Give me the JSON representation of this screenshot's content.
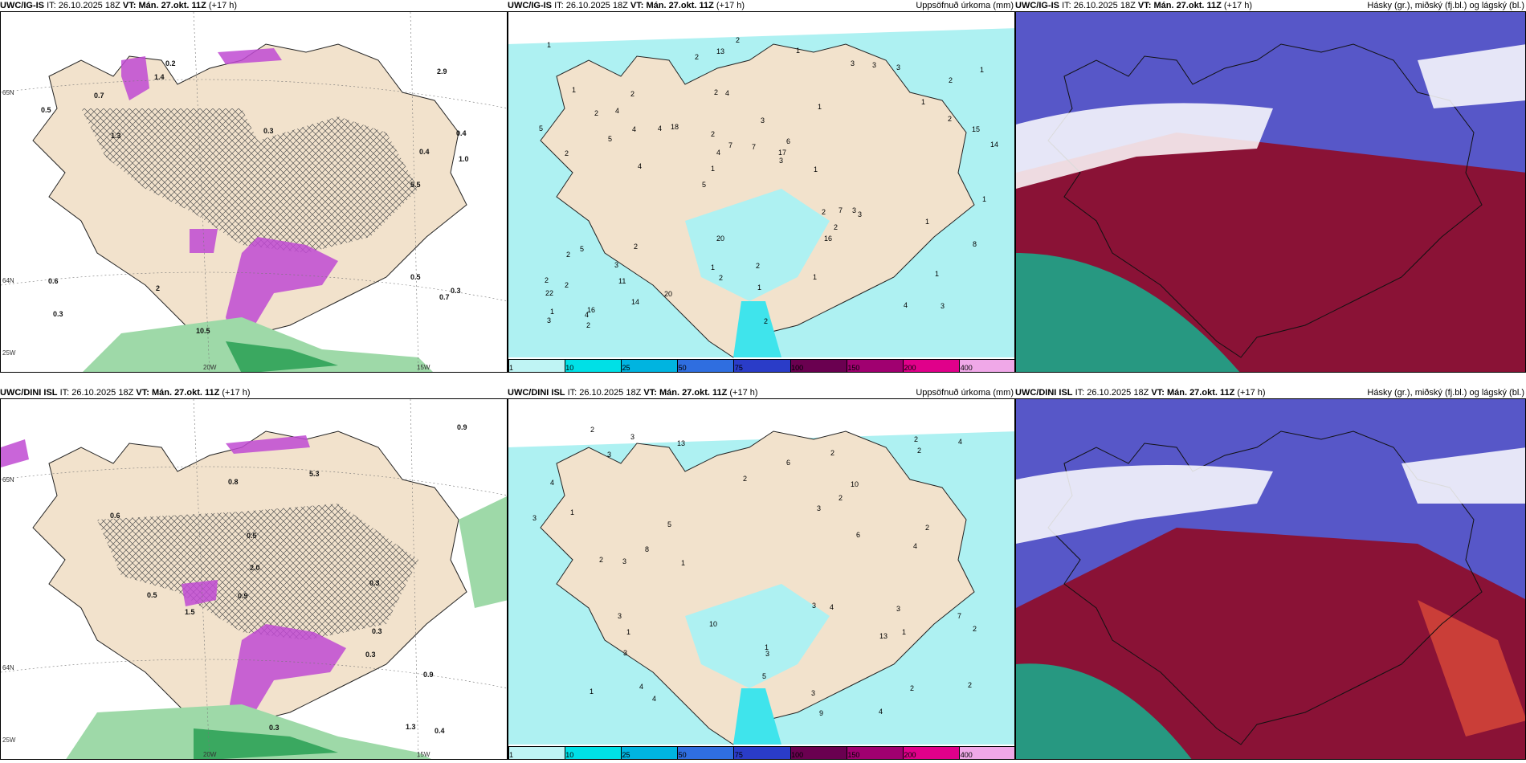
{
  "rows": [
    {
      "model": "UWC/IG-IS",
      "it_label": "IT:",
      "it_value": "26.10.2025 18Z",
      "vt_label": "VT:",
      "vt_value": "Mán. 27.okt. 11Z",
      "lead": "(+17 h)",
      "panel2_title": "Uppsöfnuð úrkoma (mm)",
      "panel3_title": "Hásky (gr.), miðský (fj.bl.) og lágský (bl.)",
      "lon_labels": [
        "20W",
        "15W"
      ],
      "lat_labels": [
        "65N",
        "64N",
        "25W"
      ],
      "precip_labels": [
        "3",
        "2",
        "2",
        "5",
        "1",
        "16",
        "2",
        "3",
        "5",
        "18",
        "22",
        "11",
        "4",
        "6",
        "3",
        "1",
        "13",
        "14",
        "2",
        "2",
        "1",
        "1",
        "4",
        "2",
        "3",
        "2",
        "4",
        "1",
        "3",
        "2",
        "4",
        "5",
        "16",
        "14",
        "15",
        "17",
        "1",
        "2",
        "3",
        "2",
        "1",
        "1",
        "2",
        "1",
        "3",
        "2",
        "3",
        "2",
        "3",
        "2",
        "4",
        "5",
        "4",
        "3",
        "4",
        "1",
        "2",
        "7",
        "8",
        "20",
        "20",
        "7",
        "4",
        "2",
        "1",
        "2",
        "1",
        "2",
        "1",
        "7",
        "2",
        "1",
        "1"
      ],
      "snow_labels": [
        "0.5",
        "0.4",
        "0.3",
        "0.3",
        "0.3",
        "0.2",
        "0.4",
        "2",
        "2.9",
        "1.3",
        "1.0",
        "0.5",
        "5.5",
        "10.5",
        "0.6",
        "0.7",
        "0.7",
        "1.4"
      ]
    },
    {
      "model": "UWC/DINI ISL",
      "it_label": "IT:",
      "it_value": "26.10.2025 18Z",
      "vt_label": "VT:",
      "vt_value": "Mán. 27.okt. 11Z",
      "lead": "(+17 h)",
      "panel2_title": "Uppsöfnuð úrkoma (mm)",
      "panel3_title": "Hásky (gr.), miðský (fj.bl.) og lágský (bl.)",
      "lon_labels": [
        "20W",
        "15W"
      ],
      "lat_labels": [
        "65N",
        "64N",
        "25W"
      ],
      "precip_labels": [
        "7",
        "4",
        "3",
        "1",
        "1",
        "5",
        "13",
        "10",
        "9",
        "4",
        "4",
        "2",
        "3",
        "6",
        "4",
        "3",
        "3",
        "4",
        "2",
        "2",
        "1",
        "3",
        "2",
        "2",
        "4",
        "3",
        "13",
        "10",
        "3",
        "8",
        "5",
        "2",
        "2",
        "3",
        "2",
        "3",
        "4",
        "2",
        "1",
        "2",
        "1",
        "2",
        "1",
        "3",
        "6",
        "3"
      ],
      "snow_labels": [
        "0.5",
        "0.4",
        "0.3",
        "0.3",
        "0.3",
        "0.9",
        "1.5",
        "2.0",
        "1.3",
        "0.5",
        "0.8",
        "0.6",
        "5.3",
        "0.9",
        "0.9",
        "0.3"
      ]
    }
  ],
  "precip_scale": {
    "ticks": [
      "1",
      "10",
      "25",
      "50",
      "75",
      "100",
      "150",
      "200",
      "400"
    ],
    "colors": [
      "#bff4f4",
      "#00e0e6",
      "#00b4e0",
      "#2f6ee0",
      "#2a3cc8",
      "#6a0050",
      "#a00070",
      "#e0008a",
      "#f0a8e8"
    ]
  },
  "colors": {
    "land": "#f2e2cc",
    "sea": "#ffffff",
    "precip_light": "#aef1f2",
    "precip_mid": "#3fe4ec",
    "snow": "#c04ad2",
    "rain_green": "#3aa860",
    "cloud_high": "#5757c8",
    "cloud_mid": "#8a1236",
    "cloud_low": "#1ca78a"
  }
}
